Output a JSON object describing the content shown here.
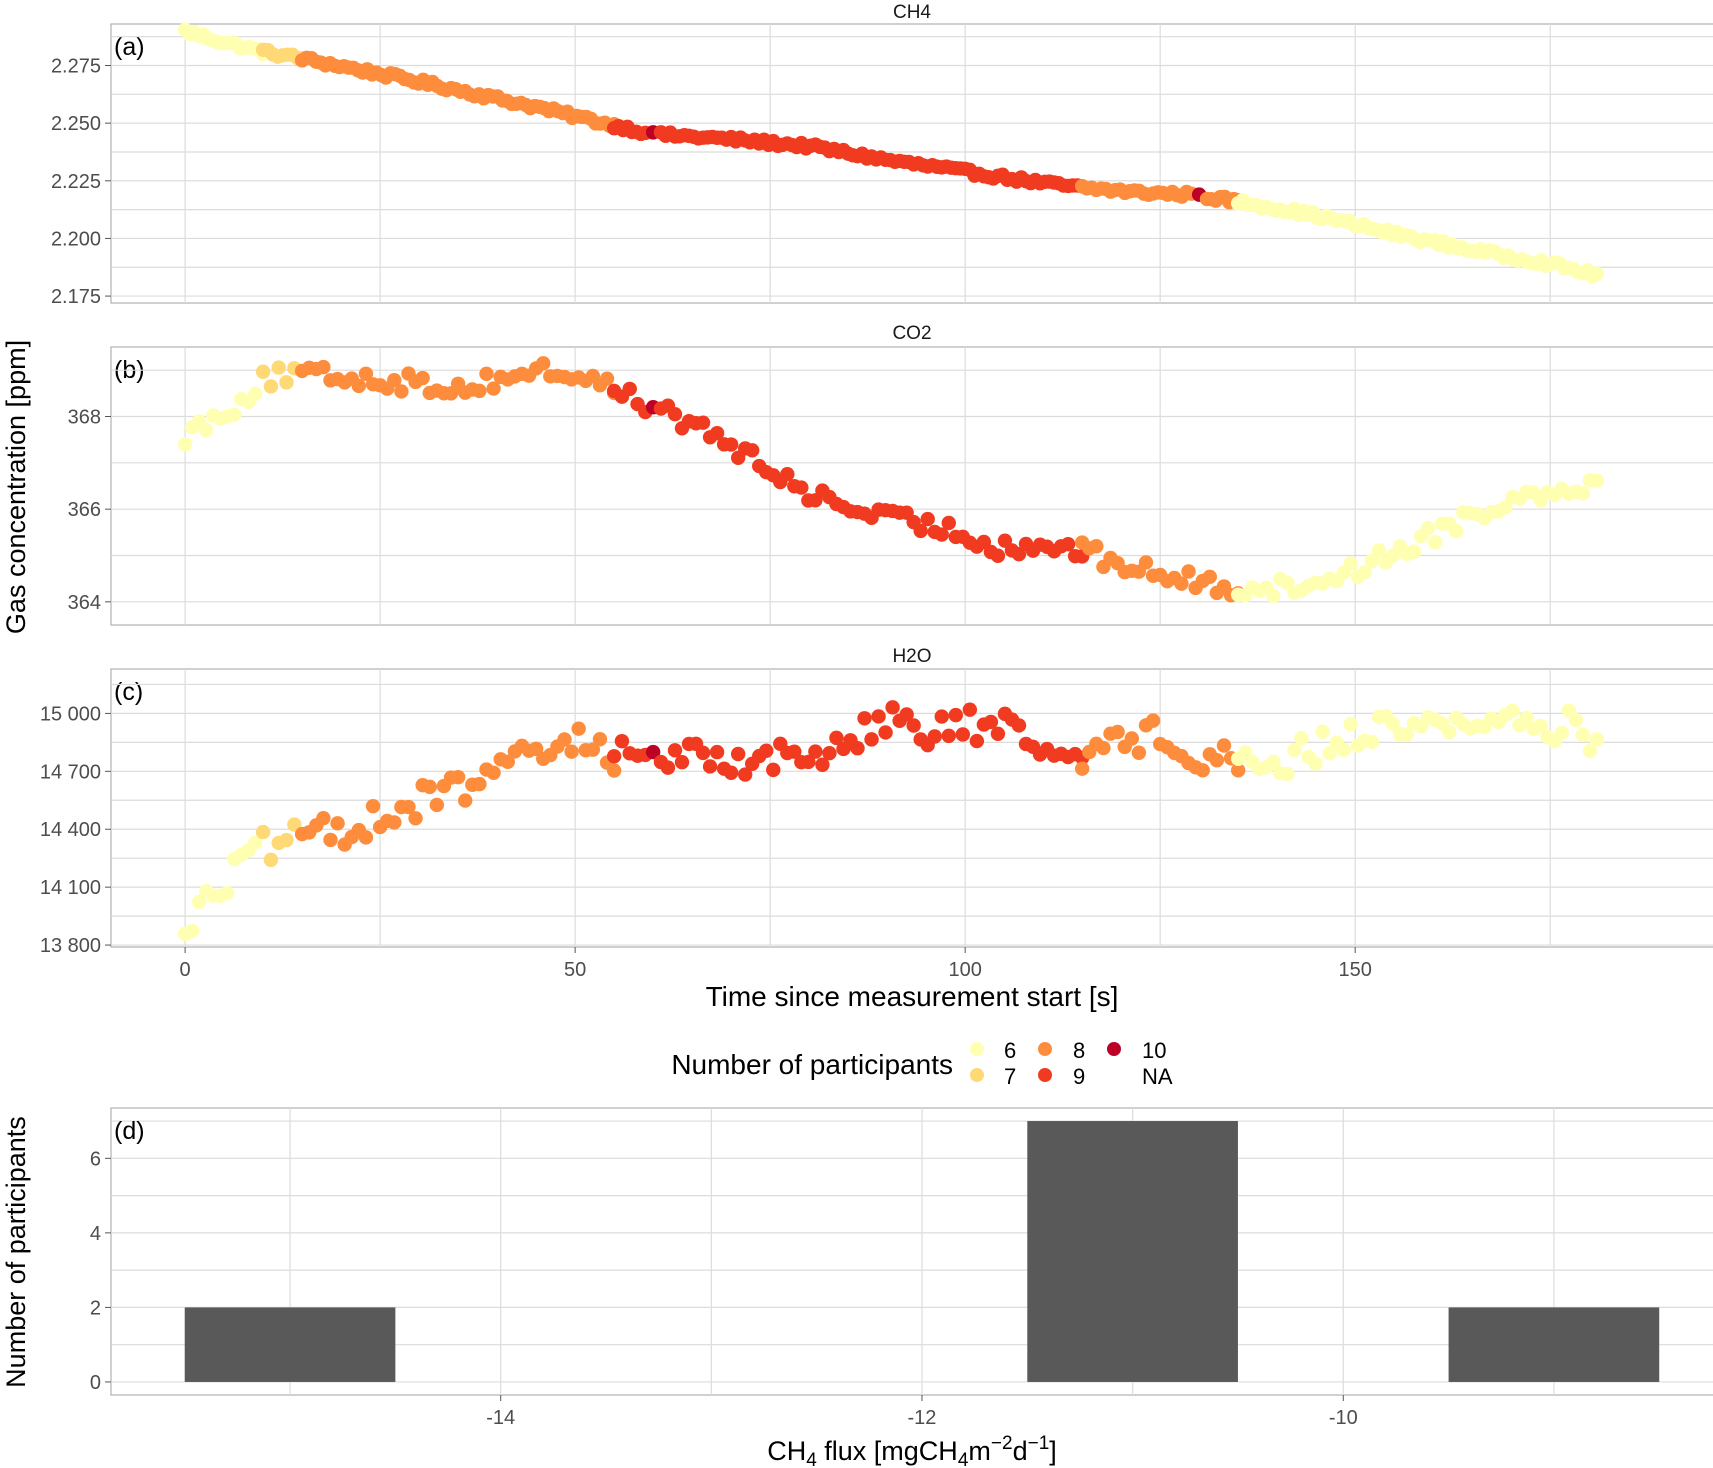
{
  "chart_data": [
    {
      "type": "scatter",
      "panel_tag": "(a)",
      "title": "CH4",
      "xlim": [
        -9.5,
        196
      ],
      "ylim": [
        2.172,
        2.293
      ],
      "yticks": [
        2.175,
        2.2,
        2.225,
        2.25,
        2.275
      ],
      "ytick_labels": [
        "2.175",
        "2.200",
        "2.225",
        "2.250",
        "2.275"
      ],
      "grid": true,
      "series_by_participants": [
        {
          "participants": 6,
          "x": [
            0,
            5,
            10
          ],
          "y": [
            2.29,
            2.285,
            2.281
          ]
        },
        {
          "participants": 7,
          "x": [
            10,
            15
          ],
          "y": [
            2.281,
            2.278
          ]
        },
        {
          "participants": 8,
          "x": [
            15,
            30,
            45,
            55
          ],
          "y": [
            2.278,
            2.268,
            2.257,
            2.249
          ]
        },
        {
          "participants": 9,
          "x": [
            55,
            59
          ],
          "y": [
            2.249,
            2.246
          ]
        },
        {
          "participants": 10,
          "x": [
            60
          ],
          "y": [
            2.246
          ]
        },
        {
          "participants": 9,
          "x": [
            61,
            70,
            80,
            90,
            100,
            110,
            115
          ],
          "y": [
            2.245,
            2.243,
            2.24,
            2.234,
            2.229,
            2.224,
            2.222
          ]
        },
        {
          "participants": 8,
          "x": [
            115,
            122,
            129
          ],
          "y": [
            2.222,
            2.22,
            2.219
          ]
        },
        {
          "participants": 10,
          "x": [
            130
          ],
          "y": [
            2.219
          ]
        },
        {
          "participants": 8,
          "x": [
            131,
            135
          ],
          "y": [
            2.218,
            2.216
          ]
        },
        {
          "participants": 6,
          "x": [
            135,
            145,
            155,
            165,
            175,
            181
          ],
          "y": [
            2.216,
            2.21,
            2.202,
            2.195,
            2.189,
            2.184
          ]
        }
      ]
    },
    {
      "type": "scatter",
      "panel_tag": "(b)",
      "title": "CO2",
      "xlim": [
        -9.5,
        196
      ],
      "ylim": [
        363.5,
        369.5
      ],
      "yticks": [
        364,
        366,
        368
      ],
      "ytick_labels": [
        "364",
        "366",
        "368"
      ],
      "grid": true,
      "series_by_participants": [
        {
          "participants": 6,
          "x": [
            0,
            3,
            6,
            9
          ],
          "y": [
            367.6,
            367.9,
            368.2,
            368.6
          ]
        },
        {
          "participants": 7,
          "x": [
            10,
            14
          ],
          "y": [
            368.8,
            368.9
          ]
        },
        {
          "participants": 8,
          "x": [
            15,
            25,
            35,
            45,
            50,
            55
          ],
          "y": [
            368.9,
            368.8,
            368.6,
            369.0,
            368.9,
            368.6
          ]
        },
        {
          "participants": 9,
          "x": [
            55,
            59
          ],
          "y": [
            368.6,
            368.3
          ]
        },
        {
          "participants": 10,
          "x": [
            60
          ],
          "y": [
            368.2
          ]
        },
        {
          "participants": 9,
          "x": [
            61,
            68,
            75,
            82,
            90,
            97,
            104,
            111,
            115
          ],
          "y": [
            368.1,
            367.6,
            366.8,
            366.2,
            365.8,
            365.6,
            365.2,
            365.2,
            365.1
          ]
        },
        {
          "participants": 8,
          "x": [
            115,
            120,
            125,
            130,
            135
          ],
          "y": [
            365.1,
            364.8,
            364.6,
            364.4,
            364.3
          ]
        },
        {
          "participants": 6,
          "x": [
            135,
            142,
            150,
            158,
            165,
            172,
            181
          ],
          "y": [
            364.3,
            364.3,
            364.7,
            365.3,
            365.9,
            366.3,
            366.6
          ]
        }
      ]
    },
    {
      "type": "scatter",
      "panel_tag": "(c)",
      "title": "H2O",
      "xlim": [
        -9.5,
        196
      ],
      "ylim": [
        13790,
        15230
      ],
      "yticks": [
        13800,
        14100,
        14400,
        14700,
        15000
      ],
      "ytick_labels": [
        "13 800",
        "14 100",
        "14 400",
        "14 700",
        "15 000"
      ],
      "grid": true,
      "series_by_participants": [
        {
          "participants": 6,
          "x": [
            0,
            3,
            6,
            9
          ],
          "y": [
            13890,
            14030,
            14170,
            14280
          ]
        },
        {
          "participants": 7,
          "x": [
            10,
            14
          ],
          "y": [
            14300,
            14340
          ]
        },
        {
          "participants": 8,
          "x": [
            15,
            25,
            35,
            45,
            50,
            55
          ],
          "y": [
            14340,
            14460,
            14610,
            14780,
            14860,
            14790
          ]
        },
        {
          "participants": 9,
          "x": [
            55,
            59
          ],
          "y": [
            14780,
            14790
          ]
        },
        {
          "participants": 10,
          "x": [
            60
          ],
          "y": [
            14800
          ]
        },
        {
          "participants": 9,
          "x": [
            61,
            70,
            80,
            90,
            95,
            100,
            105,
            110,
            115
          ],
          "y": [
            14780,
            14770,
            14760,
            14990,
            14870,
            14950,
            14920,
            14830,
            14800
          ]
        },
        {
          "participants": 8,
          "x": [
            115,
            120,
            125,
            130,
            135
          ],
          "y": [
            14800,
            14840,
            14900,
            14790,
            14760
          ]
        },
        {
          "participants": 6,
          "x": [
            135,
            140,
            147,
            155,
            162,
            170,
            178,
            181
          ],
          "y": [
            14760,
            14740,
            14850,
            14940,
            14950,
            14960,
            14930,
            14870
          ]
        }
      ]
    },
    {
      "type": "bar",
      "panel_tag": "(d)",
      "ylabel_text": "Number of participants",
      "x_centers": [
        -15,
        -11,
        -9
      ],
      "bar_width": 1,
      "values": [
        2,
        7,
        2
      ],
      "xlim": [
        -15.85,
        -8.24
      ],
      "xticks": [
        -14,
        -12,
        -10
      ],
      "xtick_labels": [
        "-14",
        "-12",
        "-10"
      ],
      "ylim": [
        -0.35,
        7.35
      ],
      "yticks": [
        0,
        2,
        4,
        6
      ],
      "ytick_labels": [
        "0",
        "2",
        "4",
        "6"
      ],
      "bar_color": "#595959",
      "grid": true
    }
  ],
  "shared_axes": {
    "xticks": [
      0,
      50,
      100,
      150
    ],
    "xtick_labels": [
      "0",
      "50",
      "100",
      "150"
    ],
    "xlabel": "Time since measurement start [s]",
    "ylabel": "Gas concentration [ppm]"
  },
  "flux_xlabel": {
    "pre": "CH",
    "sub1": "4",
    "mid": " flux [mgCH",
    "sub2": "4",
    "mid2": "m",
    "sup1": "−2",
    "mid3": "d",
    "sup2": "−1",
    "post": "]"
  },
  "legend": {
    "title": "Number of participants",
    "entries": [
      {
        "label": "6",
        "color": "#FFFFB2"
      },
      {
        "label": "7",
        "color": "#FED976"
      },
      {
        "label": "8",
        "color": "#FD8D3C"
      },
      {
        "label": "9",
        "color": "#F03B20"
      },
      {
        "label": "10",
        "color": "#BD0026"
      },
      {
        "label": "NA",
        "color": ""
      }
    ]
  },
  "colors": {
    "6": "#FFFFB2",
    "7": "#FED976",
    "8": "#FD8D3C",
    "9": "#F03B20",
    "10": "#BD0026",
    "grid": "#DCDCDC",
    "panel_border": "#B0B0B0"
  }
}
